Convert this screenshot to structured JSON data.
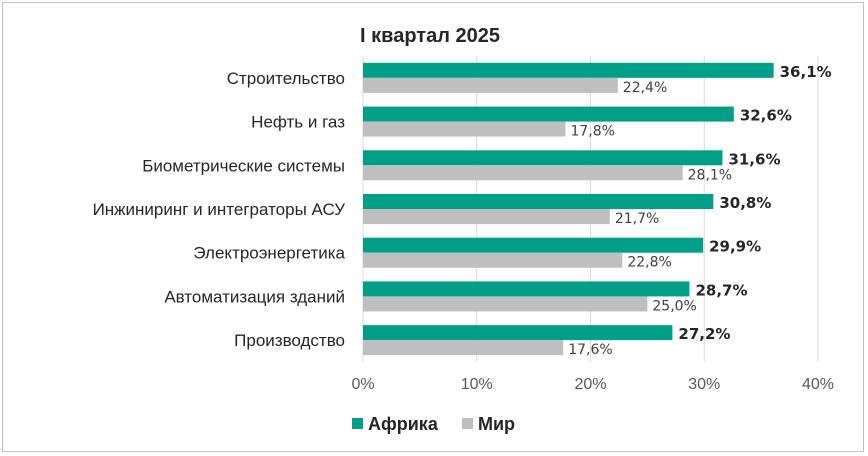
{
  "chart_data": {
    "type": "bar",
    "orientation": "horizontal",
    "title": "I квартал 2025",
    "categories": [
      "Строительство",
      "Нефть и газ",
      "Биометрические системы",
      "Инжиниринг и интеграторы АСУ",
      "Электроэнергетика",
      "Автоматизация зданий",
      "Производство"
    ],
    "series": [
      {
        "name": "Африка",
        "color": "#00a088",
        "values": [
          36.1,
          32.6,
          31.6,
          30.8,
          29.9,
          28.7,
          27.2
        ],
        "labels": [
          "36,1%",
          "32,6%",
          "31,6%",
          "30,8%",
          "29,9%",
          "28,7%",
          "27,2%"
        ]
      },
      {
        "name": "Мир",
        "color": "#bfbfbf",
        "values": [
          22.4,
          17.8,
          28.1,
          21.7,
          22.8,
          25.0,
          17.6
        ],
        "labels": [
          "22,4%",
          "17,8%",
          "28,1%",
          "21,7%",
          "22,8%",
          "25,0%",
          "17,6%"
        ]
      }
    ],
    "xlim": [
      0,
      40
    ],
    "xticks": [
      0,
      10,
      20,
      30,
      40
    ],
    "xtick_labels": [
      "0%",
      "10%",
      "20%",
      "30%",
      "40%"
    ],
    "grid": "vertical",
    "legend": "bottom-center"
  }
}
